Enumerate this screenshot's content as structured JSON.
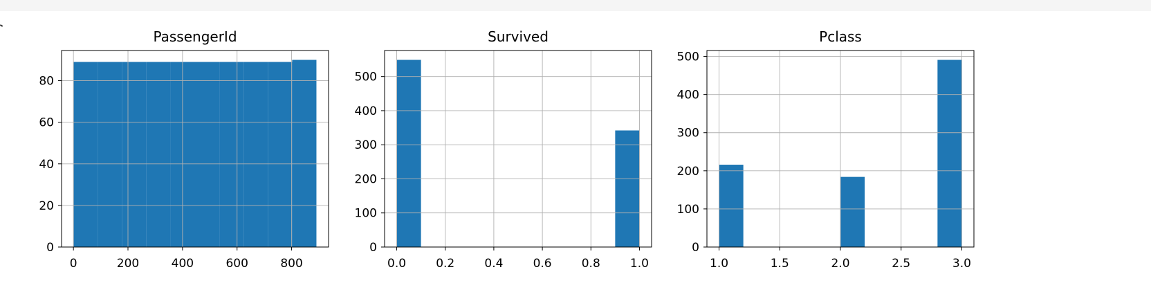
{
  "chart_data": [
    {
      "type": "bar",
      "title": "PassengerId",
      "bin_edges": [
        1.0,
        90.0,
        179.0,
        268.0,
        357.0,
        446.0,
        535.0,
        624.0,
        713.0,
        802.0,
        891.0
      ],
      "values": [
        89,
        89,
        89,
        89,
        89,
        89,
        89,
        89,
        89,
        90
      ],
      "xlim": [
        -43.5,
        935.5
      ],
      "ylim": [
        0,
        94.5
      ],
      "xticks": [
        0,
        200,
        400,
        600,
        800
      ],
      "xtick_labels": [
        "0",
        "200",
        "400",
        "600",
        "800"
      ],
      "yticks": [
        0,
        20,
        40,
        60,
        80
      ],
      "ytick_labels": [
        "0",
        "20",
        "40",
        "60",
        "80"
      ],
      "grid": true,
      "color": "#1f77b4"
    },
    {
      "type": "bar",
      "title": "Survived",
      "bin_edges": [
        0.0,
        0.1,
        0.2,
        0.3,
        0.4,
        0.5,
        0.6,
        0.7,
        0.8,
        0.9,
        1.0
      ],
      "values": [
        549,
        0,
        0,
        0,
        0,
        0,
        0,
        0,
        0,
        342
      ],
      "xlim": [
        -0.05,
        1.05
      ],
      "ylim": [
        0,
        576.45
      ],
      "xticks": [
        0.0,
        0.2,
        0.4,
        0.6,
        0.8,
        1.0
      ],
      "xtick_labels": [
        "0.0",
        "0.2",
        "0.4",
        "0.6",
        "0.8",
        "1.0"
      ],
      "yticks": [
        0,
        100,
        200,
        300,
        400,
        500
      ],
      "ytick_labels": [
        "0",
        "100",
        "200",
        "300",
        "400",
        "500"
      ],
      "grid": true,
      "color": "#1f77b4"
    },
    {
      "type": "bar",
      "title": "Pclass",
      "bin_edges": [
        1.0,
        1.2,
        1.4,
        1.6,
        1.8,
        2.0,
        2.2,
        2.4,
        2.6,
        2.8,
        3.0
      ],
      "values": [
        216,
        0,
        0,
        0,
        0,
        184,
        0,
        0,
        0,
        491
      ],
      "xlim": [
        0.9,
        3.1
      ],
      "ylim": [
        0,
        515.55
      ],
      "xticks": [
        1.0,
        1.5,
        2.0,
        2.5,
        3.0
      ],
      "xtick_labels": [
        "1.0",
        "1.5",
        "2.0",
        "2.5",
        "3.0"
      ],
      "yticks": [
        0,
        100,
        200,
        300,
        400,
        500
      ],
      "ytick_labels": [
        "0",
        "100",
        "200",
        "300",
        "400",
        "500"
      ],
      "grid": true,
      "color": "#1f77b4"
    }
  ]
}
